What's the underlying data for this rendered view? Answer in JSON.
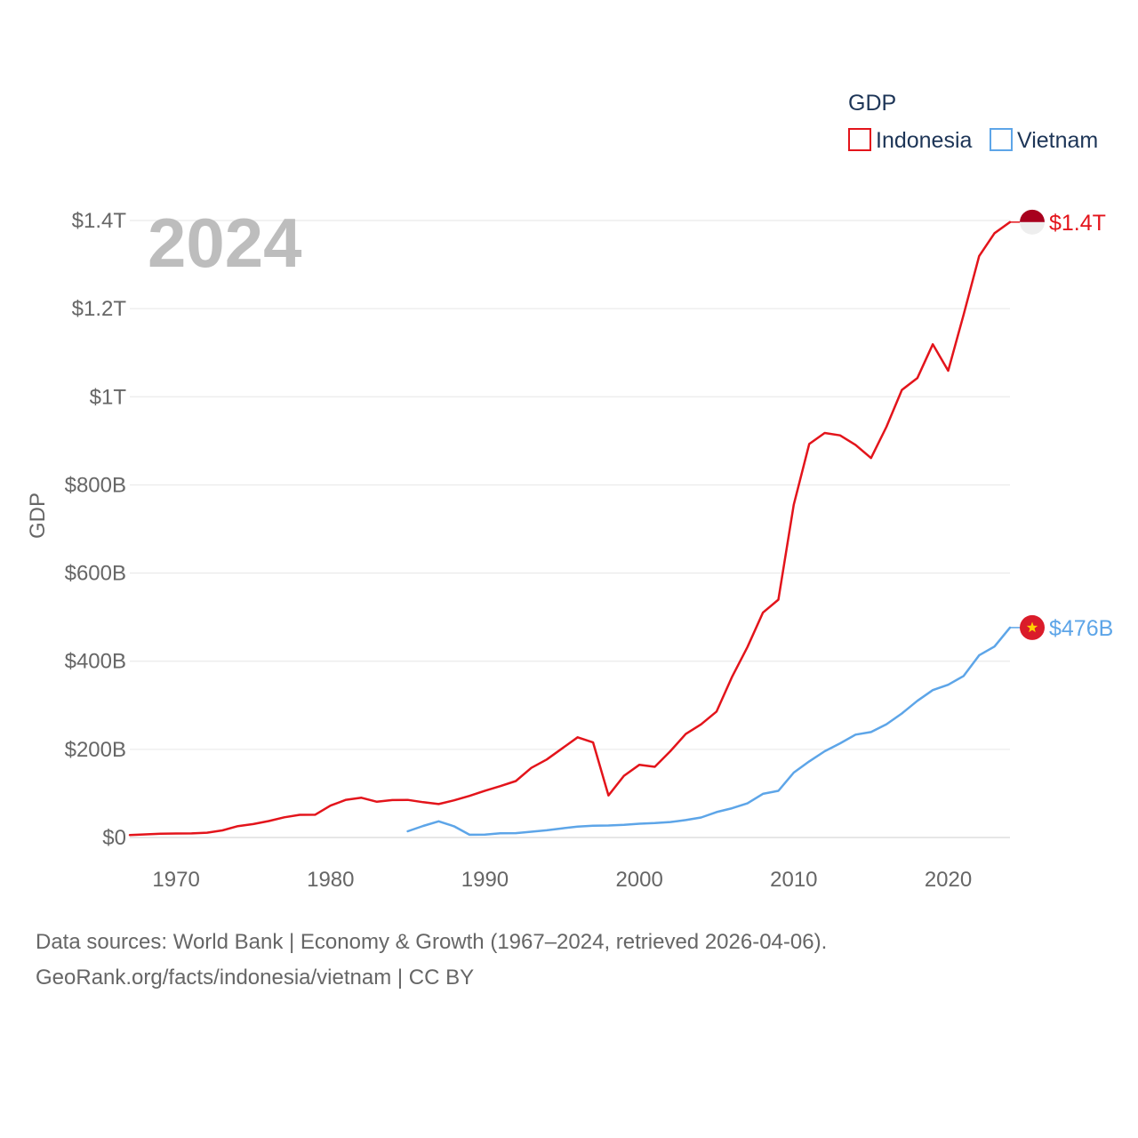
{
  "chart_data": {
    "type": "line",
    "ylabel": "GDP",
    "xlabel": "",
    "year_watermark": "2024",
    "legend_title": "GDP",
    "legend_position": "top-right",
    "grid": true,
    "xlim": [
      1967,
      2024
    ],
    "ylim": [
      0,
      1400
    ],
    "x_ticks": [
      1970,
      1980,
      1990,
      2000,
      2010,
      2020
    ],
    "x_tick_labels": [
      "1970",
      "1980",
      "1990",
      "2000",
      "2010",
      "2020"
    ],
    "y_ticks": [
      0,
      200,
      400,
      600,
      800,
      1000,
      1200,
      1400
    ],
    "y_tick_labels": [
      "$0",
      "$200B",
      "$400B",
      "$600B",
      "$800B",
      "$1T",
      "$1.2T",
      "$1.4T"
    ],
    "series": [
      {
        "name": "Indonesia",
        "color": "#e3141b",
        "end_label": "$1.4T",
        "flag": "indonesia-flag",
        "x": [
          1967,
          1968,
          1969,
          1970,
          1971,
          1972,
          1973,
          1974,
          1975,
          1976,
          1977,
          1978,
          1979,
          1980,
          1981,
          1982,
          1983,
          1984,
          1985,
          1986,
          1987,
          1988,
          1989,
          1990,
          1991,
          1992,
          1993,
          1994,
          1995,
          1996,
          1997,
          1998,
          1999,
          2000,
          2001,
          2002,
          2003,
          2004,
          2005,
          2006,
          2007,
          2008,
          2009,
          2010,
          2011,
          2012,
          2013,
          2014,
          2015,
          2016,
          2017,
          2018,
          2019,
          2020,
          2021,
          2022,
          2023,
          2024
        ],
        "values": [
          5.7,
          7,
          8.5,
          9,
          9.3,
          10.8,
          16.2,
          25.8,
          30.5,
          37.3,
          45.8,
          51.4,
          51.7,
          72.5,
          85.5,
          90.2,
          81.1,
          85,
          85.3,
          80.1,
          75.9,
          84.3,
          94.5,
          106.1,
          116.6,
          128,
          158,
          176.9,
          202.1,
          227.4,
          215.7,
          95.4,
          140,
          165,
          160.4,
          195.7,
          234.8,
          256.8,
          285.9,
          364.6,
          432.2,
          510.2,
          539.6,
          755.1,
          892.9,
          917.9,
          912.5,
          890.8,
          860.9,
          931.9,
          1015.6,
          1042.3,
          1119.1,
          1059.1,
          1186.5,
          1319.1,
          1371.2,
          1396.3
        ]
      },
      {
        "name": "Vietnam",
        "color": "#5da5e8",
        "end_label": "$476B",
        "flag": "vietnam-flag",
        "x": [
          1985,
          1986,
          1987,
          1988,
          1989,
          1990,
          1991,
          1992,
          1993,
          1994,
          1995,
          1996,
          1997,
          1998,
          1999,
          2000,
          2001,
          2002,
          2003,
          2004,
          2005,
          2006,
          2007,
          2008,
          2009,
          2010,
          2011,
          2012,
          2013,
          2014,
          2015,
          2016,
          2017,
          2018,
          2019,
          2020,
          2021,
          2022,
          2023,
          2024
        ],
        "values": [
          14.1,
          26.3,
          36.7,
          25.4,
          6.3,
          6.5,
          9.6,
          9.9,
          13.2,
          16.3,
          20.7,
          24.7,
          26.8,
          27.2,
          28.7,
          31.2,
          32.7,
          35.1,
          39.6,
          45.4,
          57.6,
          66.4,
          77.4,
          99.1,
          106,
          147.2,
          172.6,
          195.6,
          213.7,
          233.5,
          239.3,
          257.1,
          281.4,
          310.1,
          334.4,
          346.6,
          366.5,
          413.4,
          433.4,
          476.3
        ]
      }
    ]
  },
  "source": {
    "line1": "Data sources: World Bank | Economy & Growth (1967–2024, retrieved 2026-04-06).",
    "line2": "GeoRank.org/facts/indonesia/vietnam | CC BY"
  }
}
